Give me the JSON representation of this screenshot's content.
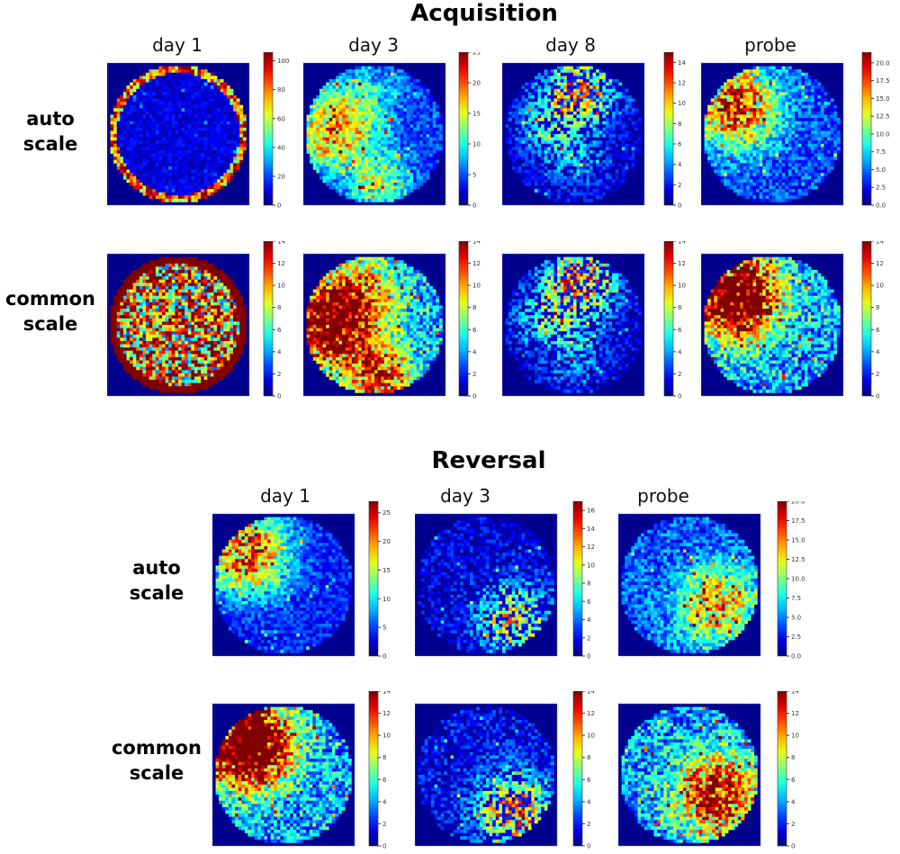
{
  "sections": [
    {
      "title": "Acquisition",
      "columns": [
        "day 1",
        "day 3",
        "day 8",
        "probe"
      ],
      "row_labels": [
        [
          "auto",
          "scale"
        ],
        [
          "common",
          "scale"
        ]
      ]
    },
    {
      "title": "Reversal",
      "columns": [
        "day 1",
        "day 3",
        "probe"
      ],
      "row_labels": [
        [
          "auto",
          "scale"
        ],
        [
          "common",
          "scale"
        ]
      ]
    }
  ],
  "colors": {
    "background_cell": "#00008f",
    "colormap": "jet"
  },
  "chart_data": [
    {
      "type": "heatmap",
      "section": "Acquisition",
      "column": "day 1",
      "row": "auto scale",
      "clim": [
        0,
        106
      ],
      "ticks": [
        0,
        20,
        40,
        60,
        80,
        100
      ],
      "tick_labels": [
        "0",
        "20",
        "40",
        "60",
        "80",
        "100"
      ]
    },
    {
      "type": "heatmap",
      "section": "Acquisition",
      "column": "day 3",
      "row": "auto scale",
      "clim": [
        0,
        25
      ],
      "ticks": [
        0,
        5,
        10,
        15,
        20,
        25
      ],
      "tick_labels": [
        "0",
        "5",
        "10",
        "15",
        "20",
        "25"
      ]
    },
    {
      "type": "heatmap",
      "section": "Acquisition",
      "column": "day 8",
      "row": "auto scale",
      "clim": [
        0,
        15
      ],
      "ticks": [
        0,
        2,
        4,
        6,
        8,
        10,
        12,
        14
      ],
      "tick_labels": [
        "0",
        "2",
        "4",
        "6",
        "8",
        "10",
        "12",
        "14"
      ]
    },
    {
      "type": "heatmap",
      "section": "Acquisition",
      "column": "probe",
      "row": "auto scale",
      "clim": [
        0,
        21.5
      ],
      "ticks": [
        0,
        2.5,
        5,
        7.5,
        10,
        12.5,
        15,
        17.5,
        20
      ],
      "tick_labels": [
        "0.0",
        "2.5",
        "5.0",
        "7.5",
        "10.0",
        "12.5",
        "15.0",
        "17.5",
        "20.0"
      ]
    },
    {
      "type": "heatmap",
      "section": "Acquisition",
      "column": "day 1",
      "row": "common scale",
      "clim": [
        0,
        14
      ],
      "ticks": [
        0,
        2,
        4,
        6,
        8,
        10,
        12,
        14
      ],
      "tick_labels": [
        "0",
        "2",
        "4",
        "6",
        "8",
        "10",
        "12",
        "14"
      ]
    },
    {
      "type": "heatmap",
      "section": "Acquisition",
      "column": "day 3",
      "row": "common scale",
      "clim": [
        0,
        14
      ],
      "ticks": [
        0,
        2,
        4,
        6,
        8,
        10,
        12,
        14
      ],
      "tick_labels": [
        "0",
        "2",
        "4",
        "6",
        "8",
        "10",
        "12",
        "14"
      ]
    },
    {
      "type": "heatmap",
      "section": "Acquisition",
      "column": "day 8",
      "row": "common scale",
      "clim": [
        0,
        14
      ],
      "ticks": [
        0,
        2,
        4,
        6,
        8,
        10,
        12,
        14
      ],
      "tick_labels": [
        "0",
        "2",
        "4",
        "6",
        "8",
        "10",
        "12",
        "14"
      ]
    },
    {
      "type": "heatmap",
      "section": "Acquisition",
      "column": "probe",
      "row": "common scale",
      "clim": [
        0,
        14
      ],
      "ticks": [
        0,
        2,
        4,
        6,
        8,
        10,
        12,
        14
      ],
      "tick_labels": [
        "0",
        "2",
        "4",
        "6",
        "8",
        "10",
        "12",
        "14"
      ]
    },
    {
      "type": "heatmap",
      "section": "Reversal",
      "column": "day 1",
      "row": "auto scale",
      "clim": [
        0,
        27
      ],
      "ticks": [
        0,
        5,
        10,
        15,
        20,
        25
      ],
      "tick_labels": [
        "0",
        "5",
        "10",
        "15",
        "20",
        "25"
      ]
    },
    {
      "type": "heatmap",
      "section": "Reversal",
      "column": "day 3",
      "row": "auto scale",
      "clim": [
        0,
        17
      ],
      "ticks": [
        0,
        2,
        4,
        6,
        8,
        10,
        12,
        14,
        16
      ],
      "tick_labels": [
        "0",
        "2",
        "4",
        "6",
        "8",
        "10",
        "12",
        "14",
        "16"
      ]
    },
    {
      "type": "heatmap",
      "section": "Reversal",
      "column": "probe",
      "row": "auto scale",
      "clim": [
        0,
        20
      ],
      "ticks": [
        0,
        2.5,
        5,
        7.5,
        10,
        12.5,
        15,
        17.5,
        20
      ],
      "tick_labels": [
        "0.0",
        "2.5",
        "5.0",
        "7.5",
        "10.0",
        "12.5",
        "15.0",
        "17.5",
        "20.0"
      ]
    },
    {
      "type": "heatmap",
      "section": "Reversal",
      "column": "day 1",
      "row": "common scale",
      "clim": [
        0,
        14
      ],
      "ticks": [
        0,
        2,
        4,
        6,
        8,
        10,
        12,
        14
      ],
      "tick_labels": [
        "0",
        "2",
        "4",
        "6",
        "8",
        "10",
        "12",
        "14"
      ]
    },
    {
      "type": "heatmap",
      "section": "Reversal",
      "column": "day 3",
      "row": "common scale",
      "clim": [
        0,
        14
      ],
      "ticks": [
        0,
        2,
        4,
        6,
        8,
        10,
        12,
        14
      ],
      "tick_labels": [
        "0",
        "2",
        "4",
        "6",
        "8",
        "10",
        "12",
        "14"
      ]
    },
    {
      "type": "heatmap",
      "section": "Reversal",
      "column": "probe",
      "row": "common scale",
      "clim": [
        0,
        14
      ],
      "ticks": [
        0,
        2,
        4,
        6,
        8,
        10,
        12,
        14
      ],
      "tick_labels": [
        "0",
        "2",
        "4",
        "6",
        "8",
        "10",
        "12",
        "14"
      ]
    }
  ]
}
